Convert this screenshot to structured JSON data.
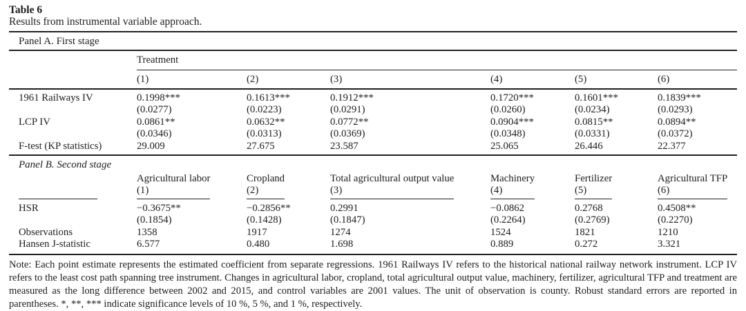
{
  "table": {
    "label": "Table 6",
    "caption": "Results from instrumental variable approach.",
    "panel_a": {
      "title": "Panel A. First stage",
      "group_header": "Treatment",
      "column_numbers": [
        "(1)",
        "(2)",
        "(3)",
        "(4)",
        "(5)",
        "(6)"
      ],
      "rows": [
        {
          "label": "1961 Railways IV",
          "values": [
            "0.1998***",
            "0.1613***",
            "0.1912***",
            "0.1720***",
            "0.1601***",
            "0.1839***"
          ]
        },
        {
          "label": "",
          "values": [
            "(0.0277)",
            "(0.0223)",
            "(0.0291)",
            "(0.0260)",
            "(0.0234)",
            "(0.0293)"
          ]
        },
        {
          "label": "LCP IV",
          "values": [
            "0.0861**",
            "0.0632**",
            "0.0772**",
            "0.0904***",
            "0.0815**",
            "0.0894**"
          ]
        },
        {
          "label": "",
          "values": [
            "(0.0346)",
            "(0.0313)",
            "(0.0369)",
            "(0.0348)",
            "(0.0331)",
            "(0.0372)"
          ]
        },
        {
          "label": "F-test (KP statistics)",
          "values": [
            "29.009",
            "27.675",
            "23.587",
            "25.065",
            "26.446",
            "22.377"
          ]
        }
      ]
    },
    "panel_b": {
      "title": "Panel B. Second stage",
      "columns": [
        {
          "label": "Agricultural labor",
          "number": "(1)"
        },
        {
          "label": "Cropland",
          "number": "(2)"
        },
        {
          "label": "Total agricultural output value",
          "number": "(3)"
        },
        {
          "label": "Machinery",
          "number": "(4)"
        },
        {
          "label": "Fertilizer",
          "number": "(5)"
        },
        {
          "label": "Agricultural TFP",
          "number": "(6)"
        }
      ],
      "rows": [
        {
          "label": "HSR",
          "values": [
            "−0.3675**",
            "−0.2856**",
            "0.2991",
            "−0.0862",
            "0.2768",
            "0.4508**"
          ]
        },
        {
          "label": "",
          "values": [
            "(0.1854)",
            "(0.1428)",
            "(0.1847)",
            "(0.2264)",
            "(0.2769)",
            "(0.2270)"
          ]
        },
        {
          "label": "Observations",
          "values": [
            "1358",
            "1917",
            "1274",
            "1524",
            "1821",
            "1210"
          ]
        },
        {
          "label": "Hansen J-statistic",
          "values": [
            "6.577",
            "0.480",
            "1.698",
            "0.889",
            "0.272",
            "3.321"
          ]
        }
      ]
    },
    "note": "Note: Each point estimate represents the estimated coefficient from separate regressions. 1961 Railways IV refers to the historical national railway network instrument. LCP IV refers to the least cost path spanning tree instrument. Changes in agricultural labor, cropland, total agricultural output value, machinery, fertilizer, agricultural TFP and treatment are measured as the long difference between 2002 and 2015, and control variables are 2001 values. The unit of observation is county. Robust standard errors are reported in parentheses. *, **, *** indicate significance levels of 10 %, 5 %, and 1 %, respectively."
  }
}
